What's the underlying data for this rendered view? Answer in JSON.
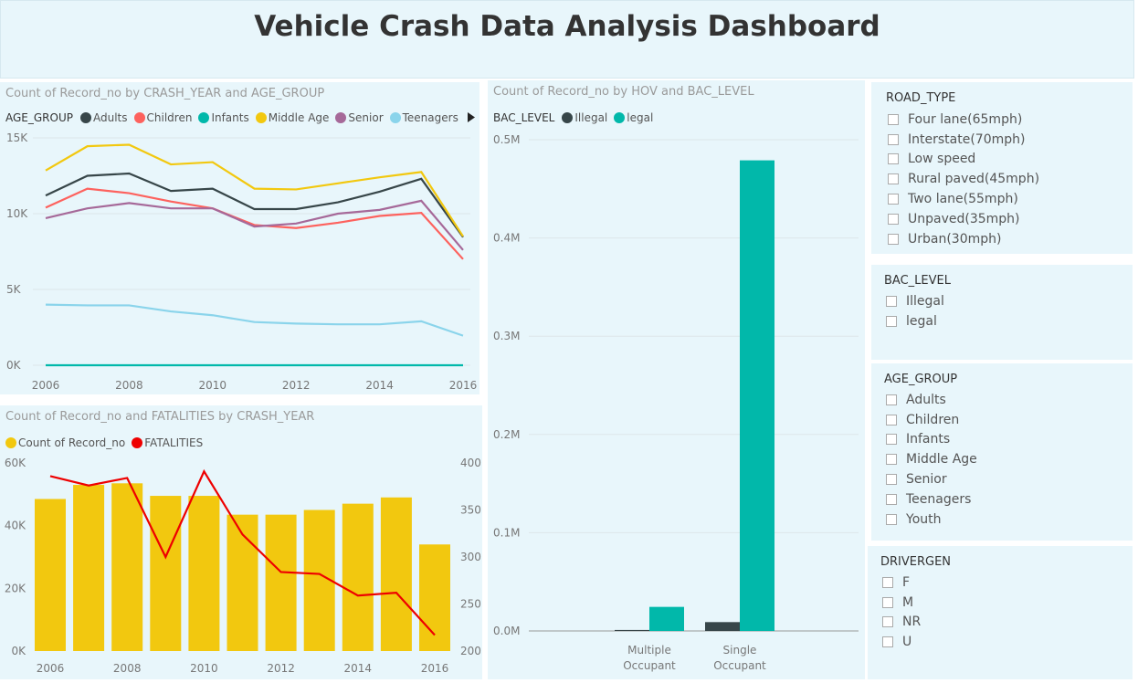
{
  "dashboard": {
    "title": "Vehicle Crash Data Analysis Dashboard"
  },
  "colors": {
    "panel_bg": "#e8f6fb",
    "Adults": "#374649",
    "Children": "#fd625e",
    "Infants": "#01b8aa",
    "Middle Age": "#f2c80f",
    "Senior": "#a66999",
    "Teenagers": "#8ad4eb",
    "Illegal": "#374649",
    "legal": "#01b8aa",
    "records_bar": "#f2c80f",
    "fatalities": "#ee0000"
  },
  "age_chart": {
    "title": "Count of Record_no by CRASH_YEAR and AGE_GROUP",
    "legend_title": "AGE_GROUP",
    "legend_more_icon": "legend-scroll-right-icon"
  },
  "hov_chart": {
    "title": "Count of Record_no by HOV and BAC_LEVEL",
    "legend_title": "BAC_LEVEL"
  },
  "fatal_chart": {
    "title": "Count of Record_no and FATALITIES by CRASH_YEAR"
  },
  "chart_data": [
    {
      "type": "line",
      "title": "Count of Record_no by CRASH_YEAR and AGE_GROUP",
      "x": [
        2006,
        2007,
        2008,
        2009,
        2010,
        2011,
        2012,
        2013,
        2014,
        2015,
        2016
      ],
      "x_ticks": [
        "2006",
        "2008",
        "2010",
        "2012",
        "2014",
        "2016"
      ],
      "y_ticks": [
        "0K",
        "5K",
        "10K",
        "15K"
      ],
      "ylim": [
        0,
        15000
      ],
      "grid": true,
      "legend_position": "top",
      "series": [
        {
          "name": "Adults",
          "values": [
            11200,
            12500,
            12650,
            11500,
            11650,
            10300,
            10300,
            10750,
            11450,
            12300,
            8450
          ]
        },
        {
          "name": "Children",
          "values": [
            10400,
            11650,
            11350,
            10800,
            10350,
            9250,
            9050,
            9400,
            9850,
            10050,
            7000
          ]
        },
        {
          "name": "Infants",
          "values": [
            0,
            0,
            0,
            0,
            0,
            0,
            0,
            0,
            0,
            0,
            0
          ]
        },
        {
          "name": "Middle Age",
          "values": [
            12850,
            14450,
            14550,
            13250,
            13400,
            11650,
            11600,
            12000,
            12400,
            12750,
            8500
          ]
        },
        {
          "name": "Senior",
          "values": [
            9700,
            10350,
            10700,
            10350,
            10350,
            9150,
            9350,
            10000,
            10250,
            10850,
            7600
          ]
        },
        {
          "name": "Teenagers",
          "values": [
            4000,
            3950,
            3950,
            3550,
            3300,
            2850,
            2750,
            2700,
            2700,
            2900,
            1950
          ]
        }
      ]
    },
    {
      "type": "bar",
      "title": "Count of Record_no by HOV and BAC_LEVEL",
      "categories": [
        "Multiple Occupant",
        "Single Occupant"
      ],
      "y_ticks": [
        "0.0M",
        "0.1M",
        "0.2M",
        "0.3M",
        "0.4M",
        "0.5M"
      ],
      "ylim": [
        0,
        500000
      ],
      "grid": true,
      "legend_position": "top",
      "series": [
        {
          "name": "Illegal",
          "values": [
            1000,
            9000
          ]
        },
        {
          "name": "legal",
          "values": [
            24500,
            479000
          ]
        }
      ]
    },
    {
      "type": "bar",
      "title": "Count of Record_no and FATALITIES by CRASH_YEAR",
      "categories": [
        "2006",
        "2007",
        "2008",
        "2009",
        "2010",
        "2011",
        "2012",
        "2013",
        "2014",
        "2015",
        "2016"
      ],
      "x_ticks": [
        "2006",
        "2008",
        "2010",
        "2012",
        "2014",
        "2016"
      ],
      "y_ticks": [
        "0K",
        "20K",
        "40K",
        "60K"
      ],
      "y2_ticks": [
        "200",
        "250",
        "300",
        "350",
        "400"
      ],
      "ylim": [
        0,
        60000
      ],
      "y2lim": [
        200,
        400
      ],
      "legend_position": "top-left",
      "series": [
        {
          "name": "Count of Record_no",
          "type": "bar",
          "axis": "left",
          "values": [
            48500,
            53000,
            53500,
            49500,
            49500,
            43500,
            43500,
            45000,
            47000,
            49000,
            34000
          ]
        },
        {
          "name": "FATALITIES",
          "type": "line",
          "axis": "right",
          "values": [
            386,
            376,
            384,
            300,
            391,
            324,
            284,
            282,
            259,
            262,
            217
          ]
        }
      ]
    }
  ],
  "slicers": {
    "road_type": {
      "title": "ROAD_TYPE",
      "items": [
        "Four lane(65mph)",
        "Interstate(70mph)",
        "Low speed",
        "Rural paved(45mph)",
        "Two lane(55mph)",
        "Unpaved(35mph)",
        "Urban(30mph)"
      ]
    },
    "bac_level": {
      "title": "BAC_LEVEL",
      "items": [
        "Illegal",
        "legal"
      ]
    },
    "age_group": {
      "title": "AGE_GROUP",
      "items": [
        "Adults",
        "Children",
        "Infants",
        "Middle Age",
        "Senior",
        "Teenagers",
        "Youth"
      ]
    },
    "drivergen": {
      "title": "DRIVERGEN",
      "items": [
        "F",
        "M",
        "NR",
        "U"
      ]
    }
  }
}
